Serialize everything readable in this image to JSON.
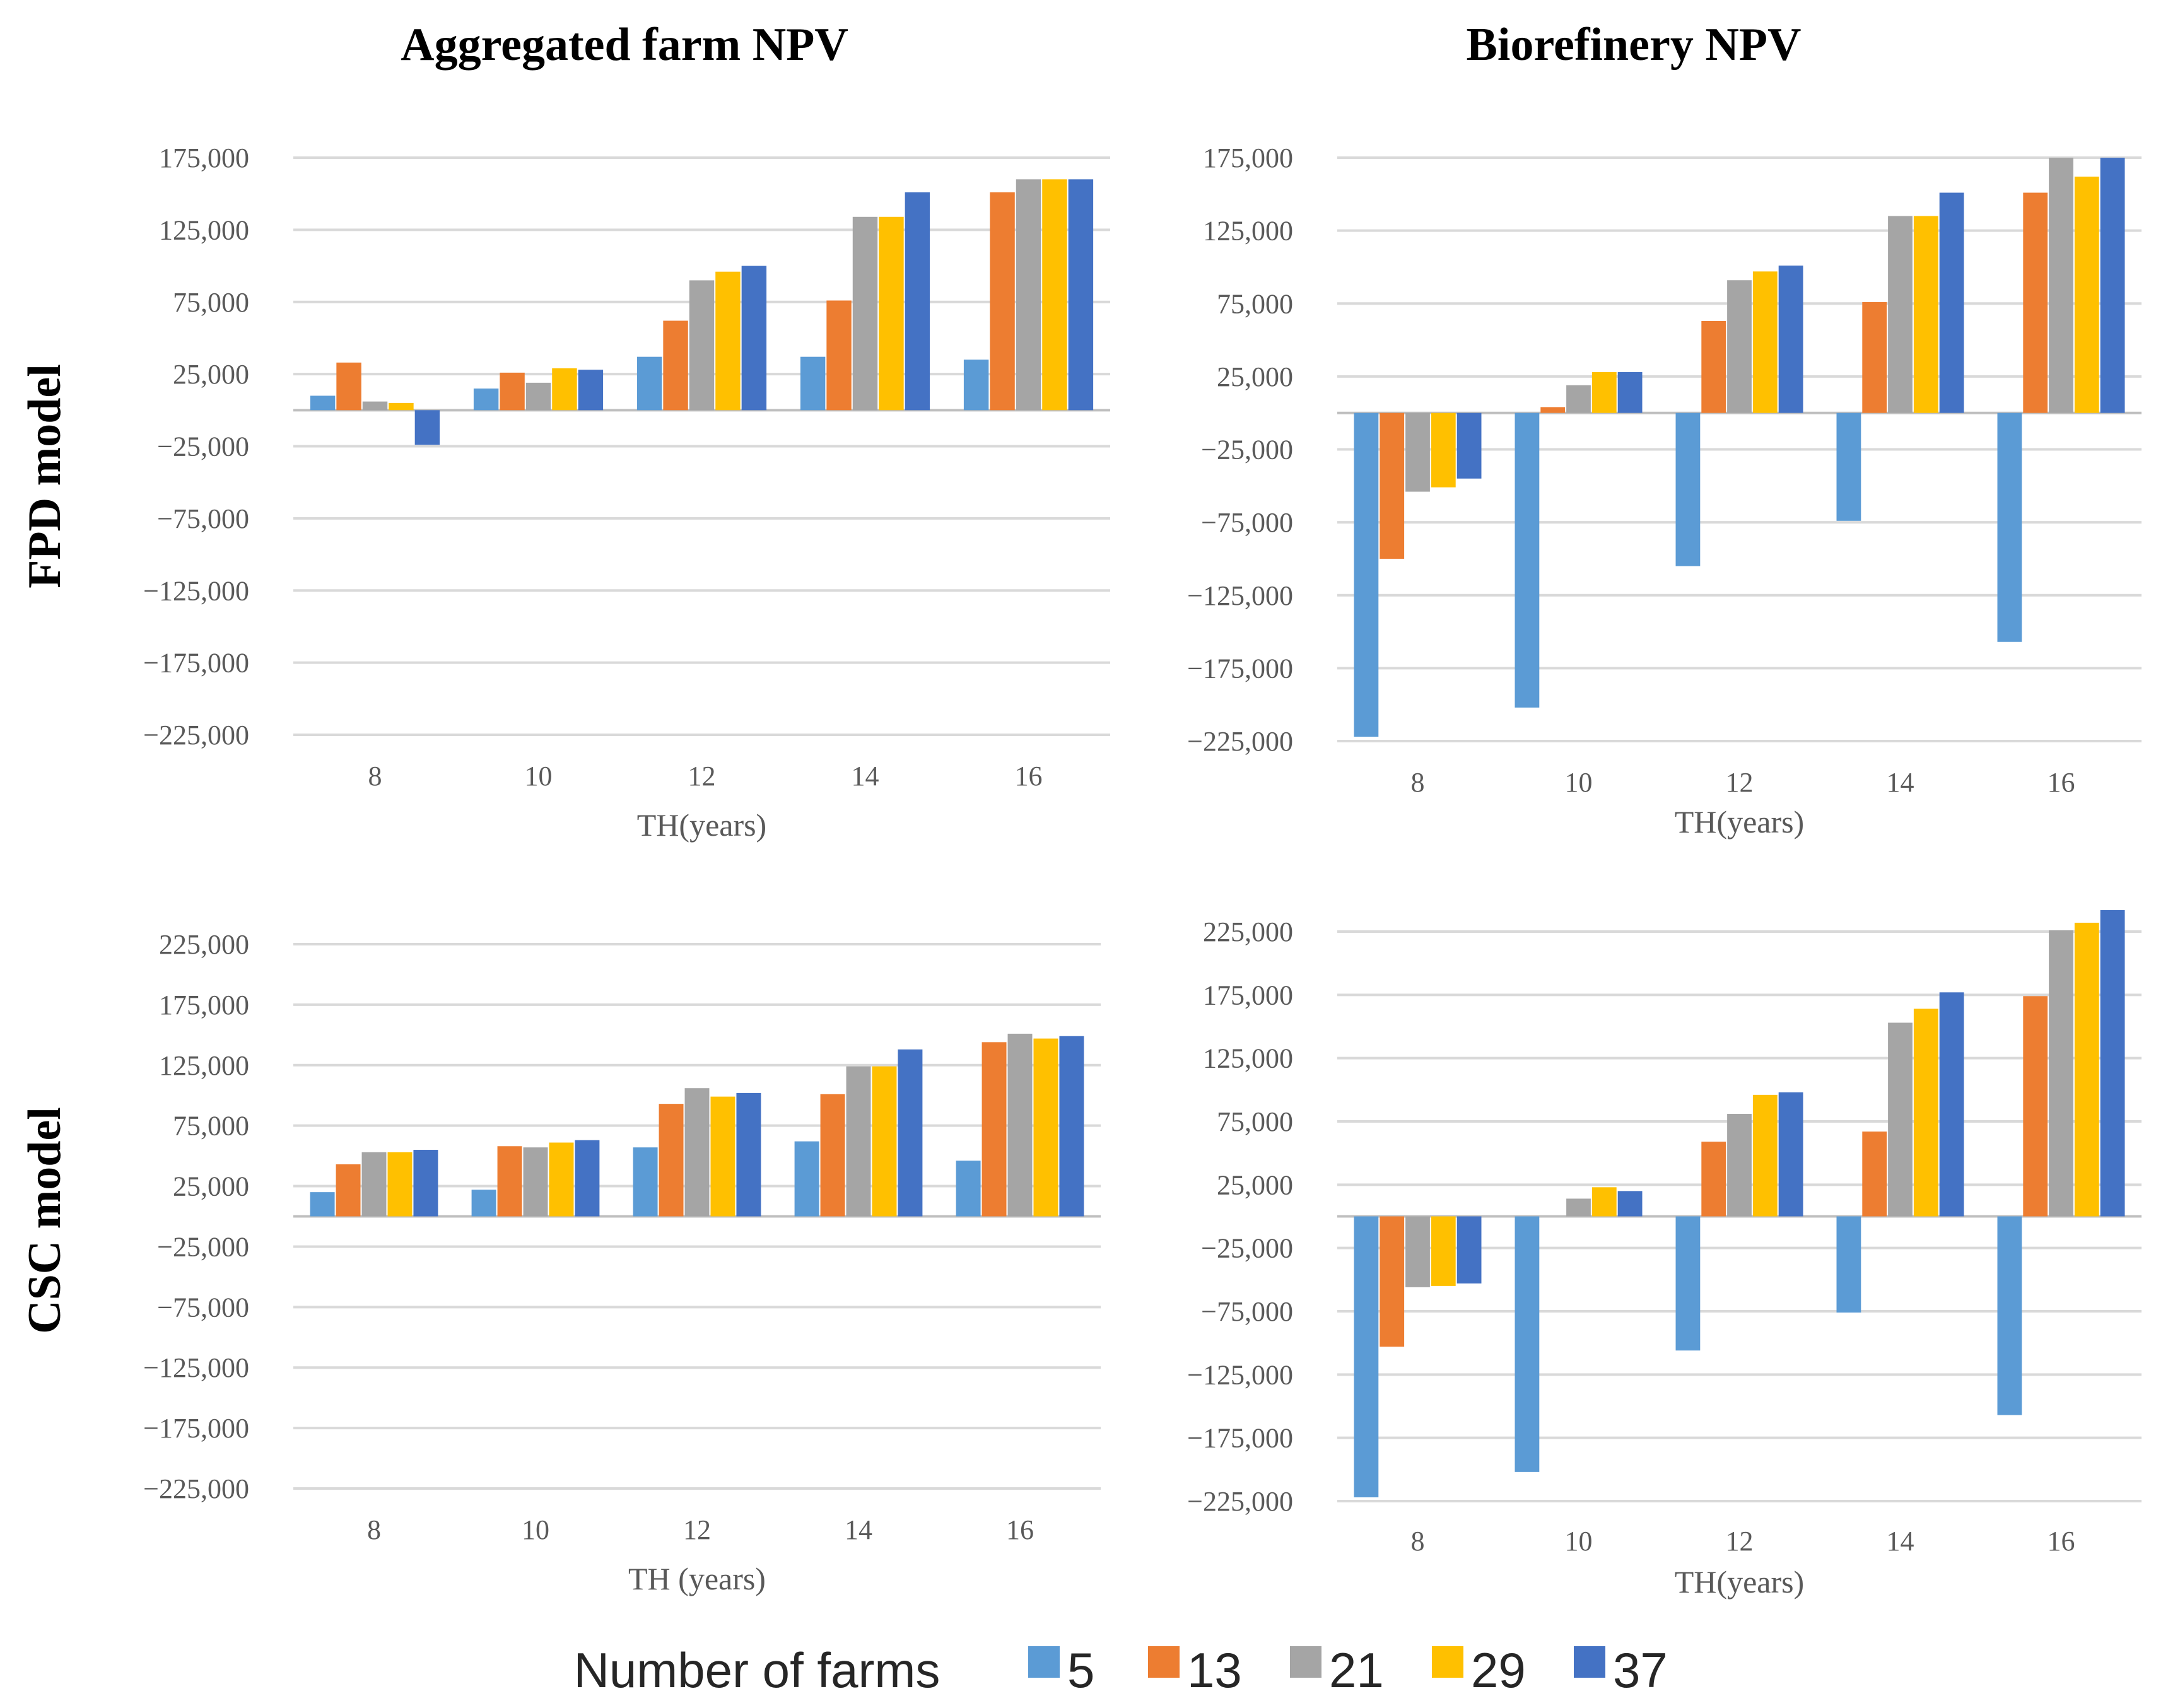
{
  "colors": {
    "5": "#5B9BD5",
    "13": "#ED7D31",
    "21": "#A5A5A5",
    "29": "#FFC000",
    "37": "#4472C4"
  },
  "column_titles": [
    "Aggregated farm NPV",
    "Biorefinery NPV"
  ],
  "row_titles": [
    "FPD model",
    "CSC model"
  ],
  "legend": {
    "title": "Number of farms",
    "items": [
      "5",
      "13",
      "21",
      "29",
      "37"
    ]
  },
  "chart_data": [
    {
      "id": "fpd-farm",
      "type": "bar",
      "title": "Aggregated farm NPV",
      "row": "FPD model",
      "xlabel": "TH(years)",
      "ylabel": "",
      "categories": [
        "8",
        "10",
        "12",
        "14",
        "16"
      ],
      "ylim": [
        -225000,
        175000
      ],
      "yticks": [
        175000,
        125000,
        75000,
        25000,
        -25000,
        -75000,
        -125000,
        -175000,
        -225000
      ],
      "ytick_labels": [
        "175,000",
        "125,000",
        "75,000",
        "25,000",
        "−25,000",
        "−75,000",
        "−125,000",
        "−175,000",
        "−225,000"
      ],
      "series": [
        {
          "name": "5",
          "values": [
            10000,
            15000,
            37000,
            37000,
            35000
          ]
        },
        {
          "name": "13",
          "values": [
            33000,
            26000,
            62000,
            76000,
            151000
          ]
        },
        {
          "name": "21",
          "values": [
            6000,
            19000,
            90000,
            134000,
            160000
          ]
        },
        {
          "name": "29",
          "values": [
            5000,
            29000,
            96000,
            134000,
            160000
          ]
        },
        {
          "name": "37",
          "values": [
            -24000,
            28000,
            100000,
            151000,
            160000
          ]
        }
      ]
    },
    {
      "id": "fpd-bio",
      "type": "bar",
      "title": "Biorefinery NPV",
      "row": "FPD model",
      "xlabel": "TH(years)",
      "ylabel": "",
      "categories": [
        "8",
        "10",
        "12",
        "14",
        "16"
      ],
      "ylim": [
        -225000,
        175000
      ],
      "yticks": [
        175000,
        125000,
        75000,
        25000,
        -25000,
        -75000,
        -125000,
        -175000,
        -225000
      ],
      "ytick_labels": [
        "175,000",
        "125,000",
        "75,000",
        "25,000",
        "−25,000",
        "−75,000",
        "−125,000",
        "−175,000",
        "−225,000"
      ],
      "series": [
        {
          "name": "5",
          "values": [
            -222000,
            -202000,
            -105000,
            -74000,
            -157000
          ]
        },
        {
          "name": "13",
          "values": [
            -100000,
            4000,
            63000,
            76000,
            151000
          ]
        },
        {
          "name": "21",
          "values": [
            -54000,
            19000,
            91000,
            135000,
            175000
          ]
        },
        {
          "name": "29",
          "values": [
            -51000,
            28000,
            97000,
            135000,
            162000
          ]
        },
        {
          "name": "37",
          "values": [
            -45000,
            28000,
            101000,
            151000,
            175000
          ]
        }
      ]
    },
    {
      "id": "csc-farm",
      "type": "bar",
      "title": "Aggregated farm NPV",
      "row": "CSC model",
      "xlabel": "TH (years)",
      "ylabel": "",
      "categories": [
        "8",
        "10",
        "12",
        "14",
        "16"
      ],
      "ylim": [
        -225000,
        225000
      ],
      "yticks": [
        225000,
        175000,
        125000,
        75000,
        25000,
        -25000,
        -75000,
        -125000,
        -175000,
        -225000
      ],
      "ytick_labels": [
        "225,000",
        "175,000",
        "125,000",
        "75,000",
        "25,000",
        "−25,000",
        "−75,000",
        "−125,000",
        "−175,000",
        "−225,000"
      ],
      "series": [
        {
          "name": "5",
          "values": [
            20000,
            22000,
            57000,
            62000,
            46000
          ]
        },
        {
          "name": "13",
          "values": [
            43000,
            58000,
            93000,
            101000,
            144000
          ]
        },
        {
          "name": "21",
          "values": [
            53000,
            57000,
            106000,
            124000,
            151000
          ]
        },
        {
          "name": "29",
          "values": [
            53000,
            61000,
            99000,
            124000,
            147000
          ]
        },
        {
          "name": "37",
          "values": [
            55000,
            63000,
            102000,
            138000,
            149000
          ]
        }
      ]
    },
    {
      "id": "csc-bio",
      "type": "bar",
      "title": "Biorefinery NPV",
      "row": "CSC model",
      "xlabel": "TH(years)",
      "ylabel": "",
      "categories": [
        "8",
        "10",
        "12",
        "14",
        "16"
      ],
      "ylim": [
        -225000,
        225000
      ],
      "yticks": [
        225000,
        175000,
        125000,
        75000,
        25000,
        -25000,
        -75000,
        -125000,
        -175000,
        -225000
      ],
      "ytick_labels": [
        "225,000",
        "175,000",
        "125,000",
        "75,000",
        "25,000",
        "−25,000",
        "−75,000",
        "−125,000",
        "−175,000",
        "−225,000"
      ],
      "series": [
        {
          "name": "5",
          "values": [
            -222000,
            -202000,
            -106000,
            -76000,
            -157000
          ]
        },
        {
          "name": "13",
          "values": [
            -103000,
            0,
            59000,
            67000,
            174000
          ]
        },
        {
          "name": "21",
          "values": [
            -56000,
            14000,
            81000,
            153000,
            226000
          ]
        },
        {
          "name": "29",
          "values": [
            -55000,
            23000,
            96000,
            164000,
            232000
          ]
        },
        {
          "name": "37",
          "values": [
            -53000,
            20000,
            98000,
            177000,
            242000
          ]
        }
      ]
    }
  ]
}
